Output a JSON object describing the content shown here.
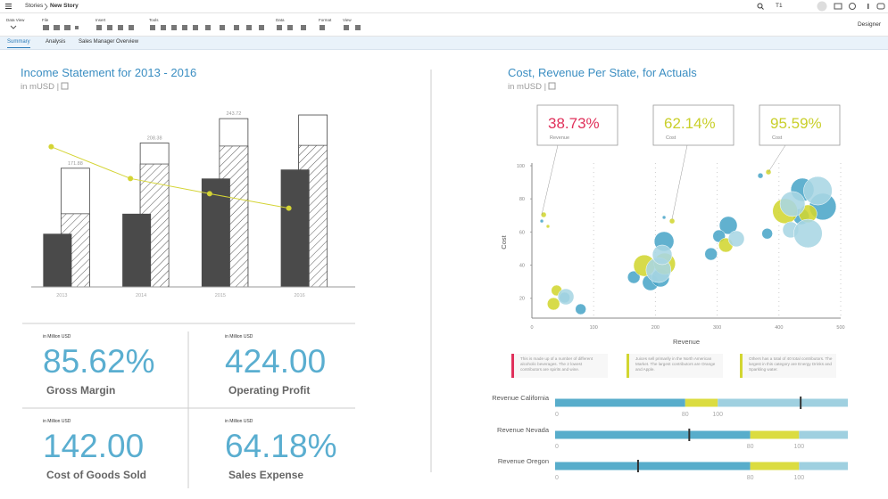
{
  "header": {
    "breadcrumb": [
      "Stories",
      "New Story"
    ],
    "search": "T1",
    "mode": "Designer",
    "groups": [
      "Data View",
      "File",
      "Insert",
      "Tools",
      "Data",
      "Format",
      "View"
    ]
  },
  "tabs": [
    "Summary",
    "Analysis",
    "Sales Manager Overview"
  ],
  "chart_data": [
    {
      "type": "bar",
      "title": "Income Statement for 2013 - 2016",
      "subtitle": "in mUSD |",
      "categories": [
        "2013",
        "2014",
        "2015",
        "2016"
      ],
      "ylim": [
        0,
        280
      ],
      "series": [
        {
          "type": "bar",
          "style": "outline",
          "color": "#444444",
          "values": [
            171.88,
            208.38,
            243.72,
            249
          ],
          "value_labels": [
            "171.88",
            "208.38",
            "243.72",
            null
          ]
        },
        {
          "type": "bar",
          "style": "hatched",
          "color": "#555555",
          "values": [
            106,
            178,
            204,
            205
          ]
        },
        {
          "type": "bar",
          "style": "solid",
          "color": "#4a4a4a",
          "values": [
            77,
            106,
            157,
            170
          ]
        },
        {
          "type": "line",
          "color": "#d4d434",
          "values": [
            203,
            157,
            135,
            114
          ]
        }
      ]
    },
    {
      "type": "scatter",
      "title": "Cost, Revenue Per State, for Actuals",
      "subtitle": "in mUSD |",
      "x_label": "Revenue",
      "y_label": "Cost",
      "xlim": [
        0,
        500
      ],
      "xticks": [
        0,
        100,
        200,
        300,
        400,
        500
      ],
      "ylim": [
        8,
        100
      ],
      "yticks": [
        20,
        40,
        60,
        80,
        100
      ],
      "grid": true,
      "series": [
        {
          "color": "#4ba6c8",
          "x": [
            16,
            79,
            53,
            214,
            165,
            214,
            192,
            208,
            318,
            303,
            290,
            381,
            370,
            438,
            471,
            436
          ],
          "y": [
            66.6,
            13.4,
            20.4,
            68.8,
            32.7,
            54.3,
            29.5,
            32.2,
            64,
            57.5,
            46.7,
            59,
            94,
            85.5,
            75.3,
            69.3
          ],
          "sizes": [
            2,
            6,
            6,
            2,
            7,
            11,
            9,
            10,
            10,
            7,
            7,
            6,
            3,
            13,
            15,
            9
          ]
        },
        {
          "color": "#d2d631",
          "x": [
            19,
            26,
            40,
            35,
            227,
            182,
            215,
            314,
            383,
            410,
            447
          ],
          "y": [
            70.4,
            63.4,
            24.7,
            16.6,
            66.6,
            39.7,
            40.8,
            52.1,
            96.2,
            72.6,
            71
          ],
          "sizes": [
            3,
            2,
            6,
            7,
            3,
            12,
            12,
            8,
            3,
            14,
            10
          ]
        },
        {
          "color": "#a8d6e4",
          "x": [
            55,
            205,
            211,
            331,
            419,
            447,
            463,
            422
          ],
          "y": [
            20.9,
            37,
            46.2,
            55.9,
            61.3,
            59.1,
            84.9,
            76.9
          ],
          "sizes": [
            9,
            14,
            11,
            9,
            9,
            16,
            16,
            14
          ]
        }
      ],
      "annotations": [
        {
          "value": "38.73%",
          "label": "Revenue",
          "color": "#e0315b"
        },
        {
          "value": "62.14%",
          "label": "Cost",
          "color": "#c9cf2a"
        },
        {
          "value": "95.59%",
          "label": "Cost",
          "color": "#c9cf2a"
        }
      ],
      "notes": [
        {
          "text": "This is made up of a number of different alcoholic beverages. The 2 lowest contributors are spirits and wine.",
          "color": "#e0315b"
        },
        {
          "text": "Juices sell primarily in the North American Market. The largest contributors are Orange and Apple.",
          "color": "#d2d631"
        },
        {
          "text": "Others has a total of 40 total contributors. The largest in this category are Energy Drinks and Sparkling water.",
          "color": "#d2d631"
        }
      ]
    },
    {
      "type": "bullet",
      "range_colors": [
        "#58adcb",
        "#dbdc40",
        "#9fd0e0"
      ],
      "marker_color": "#333333",
      "rows": [
        {
          "label": "Revenue California",
          "ranges": [
            80,
            100,
            180
          ],
          "marker": 151,
          "xlim": [
            0,
            180
          ],
          "xticks": [
            0,
            80,
            100
          ]
        },
        {
          "label": "Revenue Nevada",
          "ranges": [
            80,
            100,
            120
          ],
          "marker": 55,
          "xlim": [
            0,
            120
          ],
          "xticks": [
            0,
            80,
            100
          ]
        },
        {
          "label": "Revenue Oregon",
          "ranges": [
            80,
            100,
            120
          ],
          "marker": 34,
          "xlim": [
            0,
            120
          ],
          "xticks": [
            0,
            80,
            100
          ]
        }
      ]
    }
  ],
  "kpis": [
    {
      "unit": "in Million USD",
      "value": "85.62%",
      "label": "Gross Margin"
    },
    {
      "unit": "in Million USD",
      "value": "424.00",
      "label": "Operating Profit"
    },
    {
      "unit": "in Million USD",
      "value": "142.00",
      "label": "Cost of Goods Sold"
    },
    {
      "unit": "in Million USD",
      "value": "64.18%",
      "label": "Sales Expense"
    }
  ]
}
